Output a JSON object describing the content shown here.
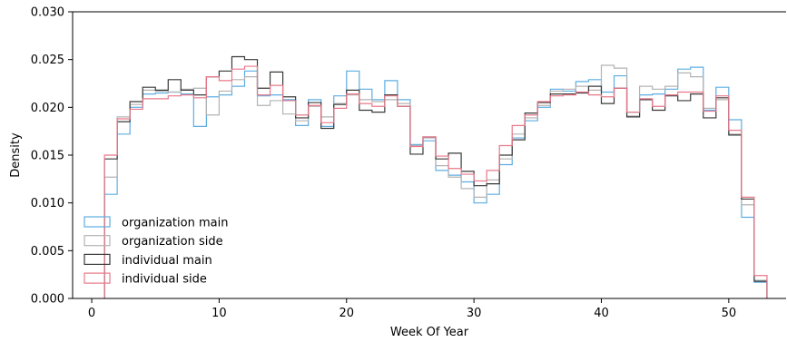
{
  "chart_data": {
    "type": "histogram-step",
    "xlabel": "Week Of Year",
    "ylabel": "Density",
    "xlim": [
      -1.5,
      54.5
    ],
    "ylim": [
      0,
      0.03
    ],
    "xticks": [
      0,
      10,
      20,
      30,
      40,
      50
    ],
    "yticks": [
      0,
      0.005,
      0.01,
      0.015,
      0.02,
      0.025,
      0.03
    ],
    "ytick_labels": [
      "0.000",
      "0.005",
      "0.010",
      "0.015",
      "0.020",
      "0.025",
      "0.030"
    ],
    "bin_edges_start": 1,
    "bin_width": 1,
    "legend_position": "lower-left",
    "series": [
      {
        "name": "organization main",
        "color": "#5dade2",
        "values": [
          0.0109,
          0.0172,
          0.02,
          0.0214,
          0.0215,
          0.0216,
          0.0214,
          0.018,
          0.0211,
          0.0213,
          0.0222,
          0.0238,
          0.0212,
          0.0213,
          0.0208,
          0.0181,
          0.0208,
          0.018,
          0.0212,
          0.0238,
          0.0219,
          0.0208,
          0.0228,
          0.0208,
          0.0161,
          0.0165,
          0.0134,
          0.0129,
          0.0122,
          0.01,
          0.0109,
          0.014,
          0.0168,
          0.0186,
          0.02,
          0.0219,
          0.0217,
          0.0227,
          0.0229,
          0.0216,
          0.0233,
          0.0195,
          0.0213,
          0.0214,
          0.0219,
          0.024,
          0.0242,
          0.0197,
          0.0221,
          0.0187,
          0.0085,
          0.0017
        ]
      },
      {
        "name": "organization side",
        "color": "#b3b3b3",
        "values": [
          0.0127,
          0.019,
          0.0203,
          0.0218,
          0.0217,
          0.0216,
          0.0219,
          0.022,
          0.0192,
          0.0217,
          0.0229,
          0.0232,
          0.0202,
          0.0207,
          0.0193,
          0.0186,
          0.0201,
          0.019,
          0.0204,
          0.0213,
          0.0208,
          0.0206,
          0.0208,
          0.0204,
          0.016,
          0.0168,
          0.0139,
          0.0127,
          0.0115,
          0.0106,
          0.0124,
          0.0146,
          0.0172,
          0.0189,
          0.0202,
          0.0217,
          0.0219,
          0.0222,
          0.0218,
          0.0244,
          0.0241,
          0.0191,
          0.0222,
          0.0219,
          0.0222,
          0.0236,
          0.0232,
          0.0199,
          0.0208,
          0.0172,
          0.0098,
          0.0019
        ]
      },
      {
        "name": "individual main",
        "color": "#3a3a3a",
        "values": [
          0.0146,
          0.0185,
          0.0206,
          0.0221,
          0.0218,
          0.0229,
          0.0218,
          0.0213,
          0.0232,
          0.0238,
          0.0253,
          0.025,
          0.022,
          0.0237,
          0.0211,
          0.0189,
          0.0205,
          0.0178,
          0.0203,
          0.0218,
          0.0197,
          0.0195,
          0.0213,
          0.0201,
          0.0151,
          0.0169,
          0.0146,
          0.0152,
          0.0133,
          0.0118,
          0.012,
          0.015,
          0.0166,
          0.0194,
          0.0205,
          0.0214,
          0.0214,
          0.0215,
          0.0222,
          0.0204,
          0.022,
          0.019,
          0.0208,
          0.0197,
          0.0212,
          0.0207,
          0.0214,
          0.0189,
          0.021,
          0.0171,
          0.0104,
          0.0018
        ]
      },
      {
        "name": "individual side",
        "color": "#e8788a",
        "values": [
          0.015,
          0.0188,
          0.0198,
          0.0209,
          0.0209,
          0.0212,
          0.0213,
          0.021,
          0.0232,
          0.0228,
          0.024,
          0.0243,
          0.0213,
          0.0223,
          0.0207,
          0.0192,
          0.0202,
          0.0184,
          0.0199,
          0.0214,
          0.0204,
          0.0201,
          0.0212,
          0.0201,
          0.0159,
          0.0169,
          0.0149,
          0.0136,
          0.013,
          0.0123,
          0.0134,
          0.016,
          0.0181,
          0.0192,
          0.0206,
          0.0212,
          0.0213,
          0.0216,
          0.0213,
          0.0211,
          0.022,
          0.0195,
          0.0209,
          0.0201,
          0.0213,
          0.0216,
          0.0216,
          0.0196,
          0.0212,
          0.0176,
          0.0106,
          0.0024
        ]
      }
    ]
  }
}
